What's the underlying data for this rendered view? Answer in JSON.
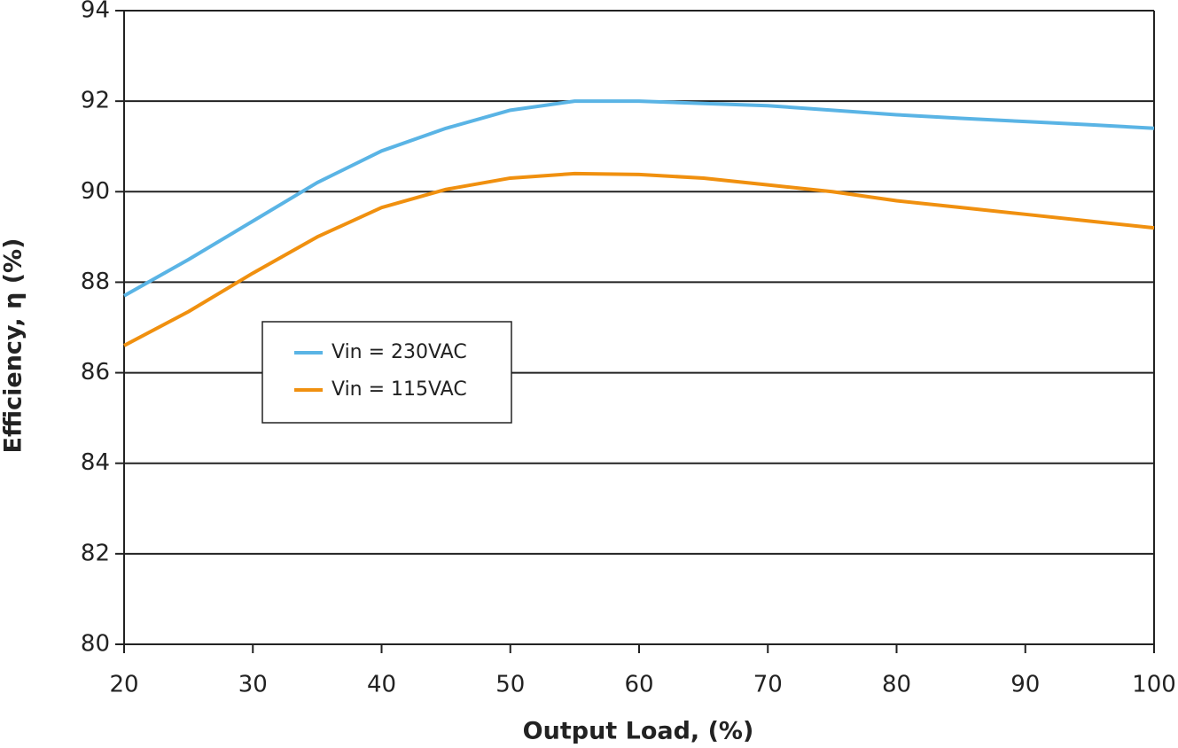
{
  "chart_data": {
    "type": "line",
    "x_label": "Output Load, (%)",
    "y_label": "Efficiency, η (%)",
    "x": [
      20,
      25,
      30,
      35,
      40,
      45,
      50,
      55,
      60,
      65,
      70,
      75,
      80,
      85,
      90,
      95,
      100
    ],
    "series": [
      {
        "name": "Vin = 230VAC",
        "color": "#5ab4e5",
        "values": [
          87.7,
          88.5,
          89.35,
          90.2,
          90.9,
          91.4,
          91.8,
          92.0,
          92.0,
          91.95,
          91.9,
          91.8,
          91.7,
          91.62,
          91.55,
          91.48,
          91.4
        ]
      },
      {
        "name": "Vin = 115VAC",
        "color": "#f0900f",
        "values": [
          86.6,
          87.35,
          88.2,
          89.0,
          89.65,
          90.05,
          90.3,
          90.4,
          90.38,
          90.3,
          90.15,
          90.0,
          89.8,
          89.65,
          89.5,
          89.35,
          89.2
        ]
      }
    ],
    "xlim": [
      20,
      100
    ],
    "xticks": [
      20,
      30,
      40,
      50,
      60,
      70,
      80,
      90,
      100
    ],
    "ylim": [
      80,
      94
    ],
    "yticks": [
      80,
      82,
      84,
      86,
      88,
      90,
      92,
      94
    ],
    "grid": true,
    "legend": "left"
  }
}
